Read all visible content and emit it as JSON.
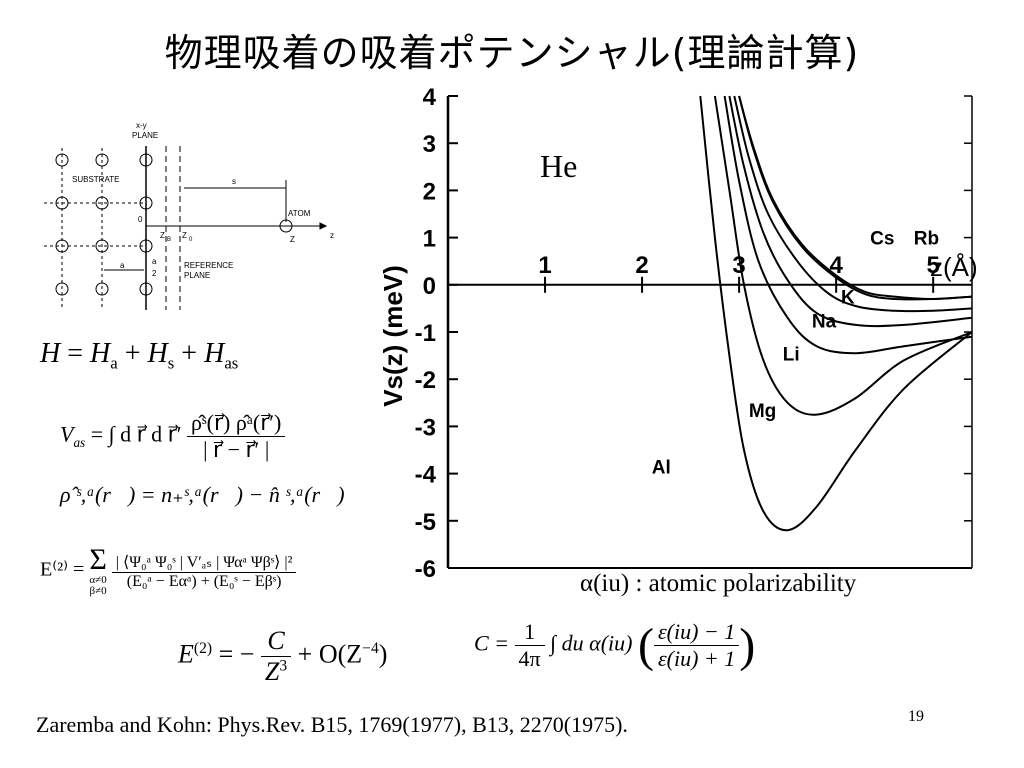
{
  "title": "物理吸着の吸着ポテンシャル(理論計算)",
  "page_number": "19",
  "citation": "Zaremba and Kohn: Phys.Rev. B15, 1769(1977), B13, 2270(1975).",
  "schematic": {
    "plane_label_top": "x-y",
    "plane_label_bottom": "PLANE",
    "substrate_label": "SUBSTRATE",
    "atom_label": "ATOM",
    "s_label": "s",
    "z_axis_label": "z",
    "zb_label": "Z",
    "zb_sub": "B",
    "z0_label": "Z",
    "z0_sub": "0",
    "zero_label": "0",
    "a_label": "a",
    "a_half_top": "a",
    "a_half_bottom": "2",
    "atom_z_label": "Z",
    "reference_label_1": "REFERENCE",
    "reference_label_2": "PLANE"
  },
  "equations": {
    "hamiltonian": {
      "lhs": "H",
      "eq": " = ",
      "t1": "H",
      "t1_sub": "a",
      "plus1": " + ",
      "t2": "H",
      "t2_sub": "s",
      "plus2": " + ",
      "t3": "H",
      "t3_sub": "as"
    },
    "vas": {
      "lhs": "V",
      "lhs_sub": "as",
      "rhs": " = ∫ d r⃗ d r⃗′ ",
      "num": "ρ̂ˢ(r⃗) ρ̂ᵃ(r⃗′)",
      "den": "| r⃗ − r⃗′ |"
    },
    "rho": "ρ̂ ˢ,ᵃ(r⃗) = n₊ˢ,ᵃ(r⃗) − n̂ ˢ,ᵃ(r⃗)",
    "e2_full": {
      "lhs": "E⁽²⁾ = ",
      "sum": "Σ",
      "sum_cond1": "α≠0",
      "sum_cond2": "β≠0",
      "num": "| ⟨Ψ₀ᵃ Ψ₀ˢ | V′ₐₛ | Ψαᵃ Ψβˢ⟩ |²",
      "den": "(E₀ᵃ − Eαᵃ) + (E₀ˢ − Eβˢ)"
    },
    "e2_simple": {
      "lhs": "E",
      "lhs_sup": "(2)",
      "eq": " = − ",
      "num": "C",
      "den": "Z",
      "den_sup": "3",
      "rest": " + O(Z",
      "rest_sup": "−4",
      "close": ")"
    },
    "c_def": {
      "lhs": "C = ",
      "num1": "1",
      "den1": "4π",
      "mid": " ∫ du α(iu) ",
      "num2": "ε(iu) − 1",
      "den2": "ε(iu) + 1"
    }
  },
  "polarizability_note": "α(iu) : atomic polarizability",
  "chart_data": {
    "type": "line",
    "title": "",
    "annotation": "He",
    "ylabel": "Vs(z)  (meV)",
    "xlabel": "z(Å)",
    "xlim": [
      0,
      5.4
    ],
    "ylim": [
      -6,
      4
    ],
    "x_ticks": [
      "1",
      "2",
      "3",
      "4",
      "5"
    ],
    "y_ticks": [
      "4",
      "3",
      "2",
      "1",
      "0",
      "-1",
      "-2",
      "-3",
      "-4",
      "-5",
      "-6"
    ],
    "series": [
      {
        "name": "Al",
        "x": [
          2.6,
          2.75,
          2.9,
          3.05,
          3.25,
          3.5,
          3.8,
          4.2,
          4.7,
          5.4
        ],
        "y": [
          4,
          1,
          -1.5,
          -3.5,
          -4.8,
          -5.2,
          -4.7,
          -3.5,
          -2.2,
          -1.0
        ]
      },
      {
        "name": "Mg",
        "x": [
          2.75,
          2.9,
          3.05,
          3.25,
          3.5,
          3.8,
          4.2,
          4.7,
          5.4
        ],
        "y": [
          4,
          2,
          0,
          -1.6,
          -2.5,
          -2.75,
          -2.4,
          -1.6,
          -1.0
        ]
      },
      {
        "name": "Li",
        "x": [
          2.85,
          3.0,
          3.2,
          3.5,
          3.8,
          4.2,
          4.7,
          5.4
        ],
        "y": [
          4,
          2.2,
          0.5,
          -0.7,
          -1.3,
          -1.45,
          -1.3,
          -1.1
        ]
      },
      {
        "name": "Na",
        "x": [
          2.9,
          3.05,
          3.25,
          3.5,
          3.8,
          4.2,
          4.7,
          5.4
        ],
        "y": [
          4,
          2.5,
          1.1,
          0.1,
          -0.6,
          -0.85,
          -0.85,
          -0.7
        ]
      },
      {
        "name": "K",
        "x": [
          2.95,
          3.1,
          3.3,
          3.6,
          3.9,
          4.2,
          4.6,
          5.0,
          5.4
        ],
        "y": [
          4,
          2.7,
          1.5,
          0.5,
          -0.15,
          -0.45,
          -0.55,
          -0.55,
          -0.5
        ]
      },
      {
        "name": "Cs",
        "x": [
          3.0,
          3.15,
          3.35,
          3.65,
          4.0,
          4.3,
          4.6,
          5.0,
          5.4
        ],
        "y": [
          4,
          2.9,
          1.8,
          0.85,
          0.2,
          -0.15,
          -0.25,
          -0.3,
          -0.25
        ]
      },
      {
        "name": "Rb",
        "x": [
          3.0,
          3.15,
          3.35,
          3.65,
          4.0,
          4.3,
          4.6,
          5.0,
          5.4
        ],
        "y": [
          4,
          2.85,
          1.75,
          0.8,
          0.15,
          -0.2,
          -0.3,
          -0.3,
          -0.25
        ]
      }
    ],
    "series_labels": [
      {
        "name": "Al",
        "x": 2.1,
        "y": -4.0
      },
      {
        "name": "Mg",
        "x": 3.1,
        "y": -2.8
      },
      {
        "name": "Li",
        "x": 3.45,
        "y": -1.6
      },
      {
        "name": "Na",
        "x": 3.75,
        "y": -0.9
      },
      {
        "name": "K",
        "x": 4.05,
        "y": -0.4
      },
      {
        "name": "Cs",
        "x": 4.35,
        "y": 0.85
      },
      {
        "name": "Rb",
        "x": 4.8,
        "y": 0.85
      }
    ],
    "grid": false
  }
}
